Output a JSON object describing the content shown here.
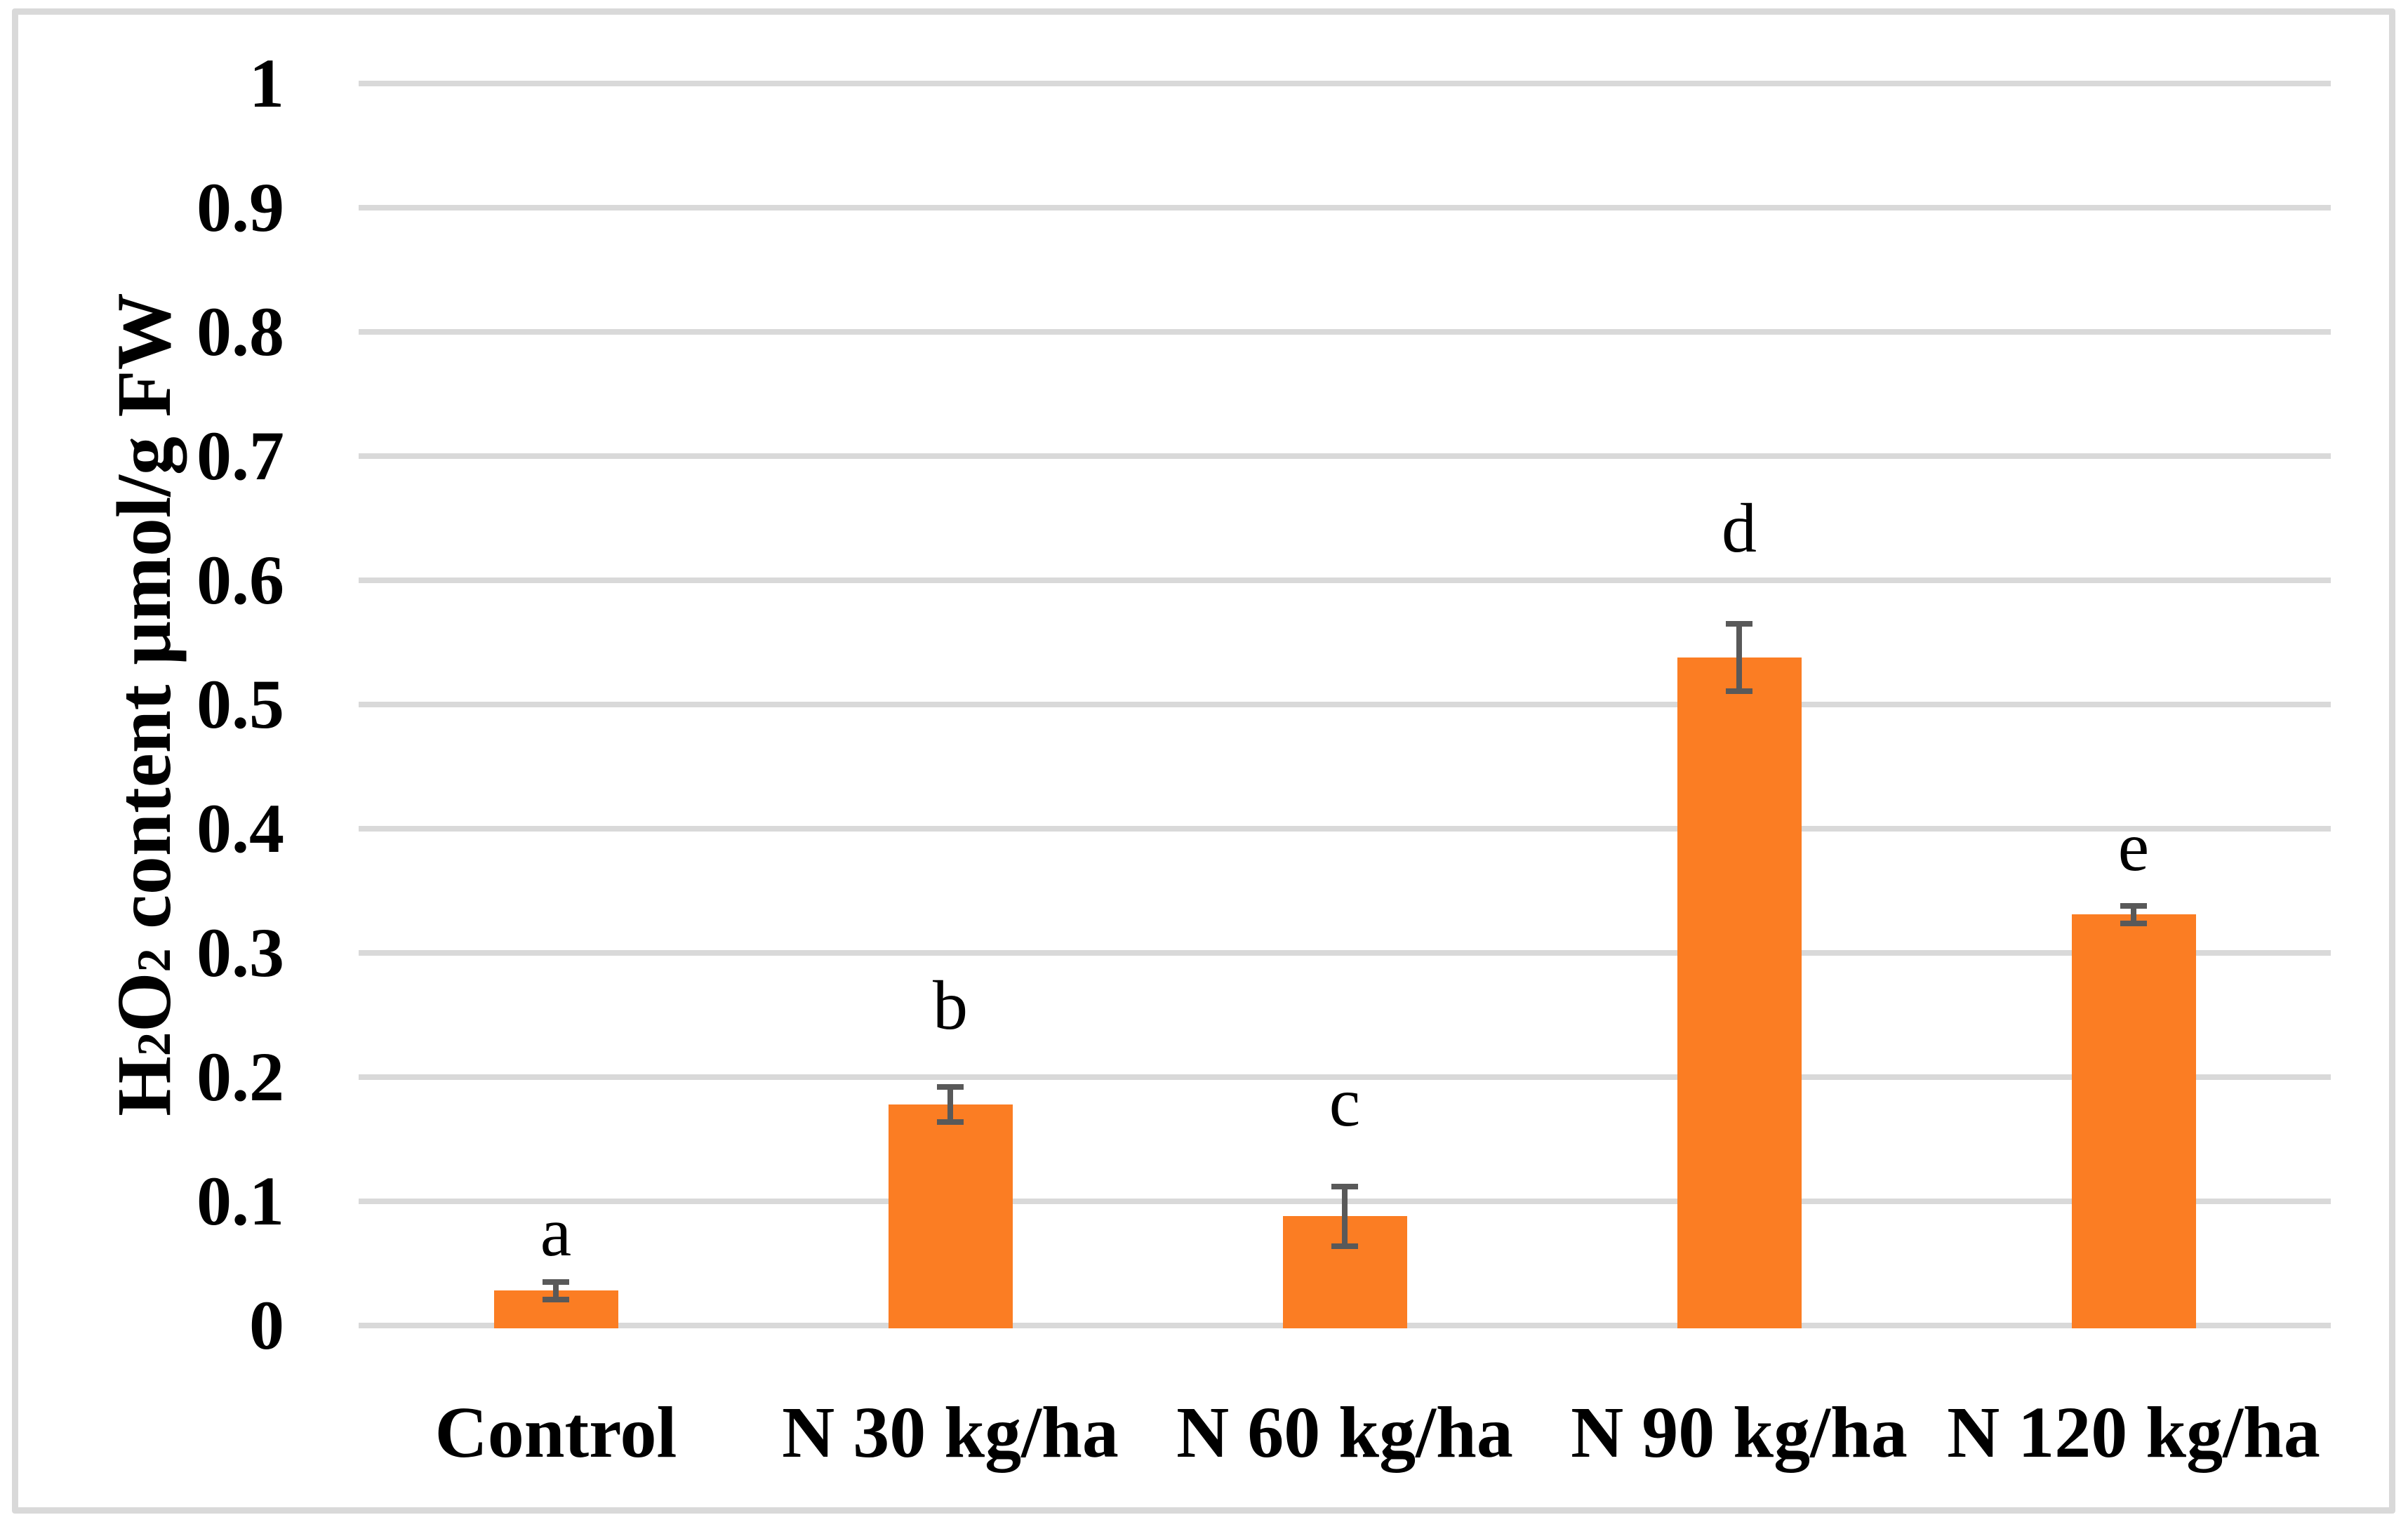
{
  "figure": {
    "background_color": "#FFFFFF",
    "border_color": "#D9D9D9"
  },
  "chart_data": {
    "type": "bar",
    "title": "",
    "ylabel": "H2O2 content µmol/g FW",
    "ylabel_parts": [
      {
        "text": "H"
      },
      {
        "sub": "2"
      },
      {
        "text": "O"
      },
      {
        "sub": "2"
      },
      {
        "text": " content  µmol/g FW"
      }
    ],
    "xlabel": "",
    "categories": [
      "Control",
      "N 30 kg/ha",
      "N 60 kg/ha",
      "N 90 kg/ha",
      "N 120 kg/ha"
    ],
    "series": [
      {
        "name": "H2O2 content",
        "values": [
          0.028,
          0.178,
          0.088,
          0.538,
          0.331
        ],
        "error_high": [
          0.035,
          0.192,
          0.112,
          0.565,
          0.338
        ],
        "error_low": [
          0.021,
          0.164,
          0.064,
          0.511,
          0.324
        ],
        "sig_letters": [
          "a",
          "b",
          "c",
          "d",
          "e"
        ]
      }
    ],
    "yticks": [
      "1",
      "0.9",
      "0.8",
      "0.7",
      "0.6",
      "0.5",
      "0.4",
      "0.3",
      "0.2",
      "0.1",
      "0"
    ],
    "ytick_values": [
      1,
      0.9,
      0.8,
      0.7,
      0.6,
      0.5,
      0.4,
      0.3,
      0.2,
      0.1,
      0
    ],
    "ylim": [
      0,
      1
    ],
    "grid": true,
    "legend": false,
    "bar_color": "#FB7D23",
    "error_bar_color": "#595959",
    "gridline_color": "#D9D9D9",
    "text_color": "#000000"
  }
}
